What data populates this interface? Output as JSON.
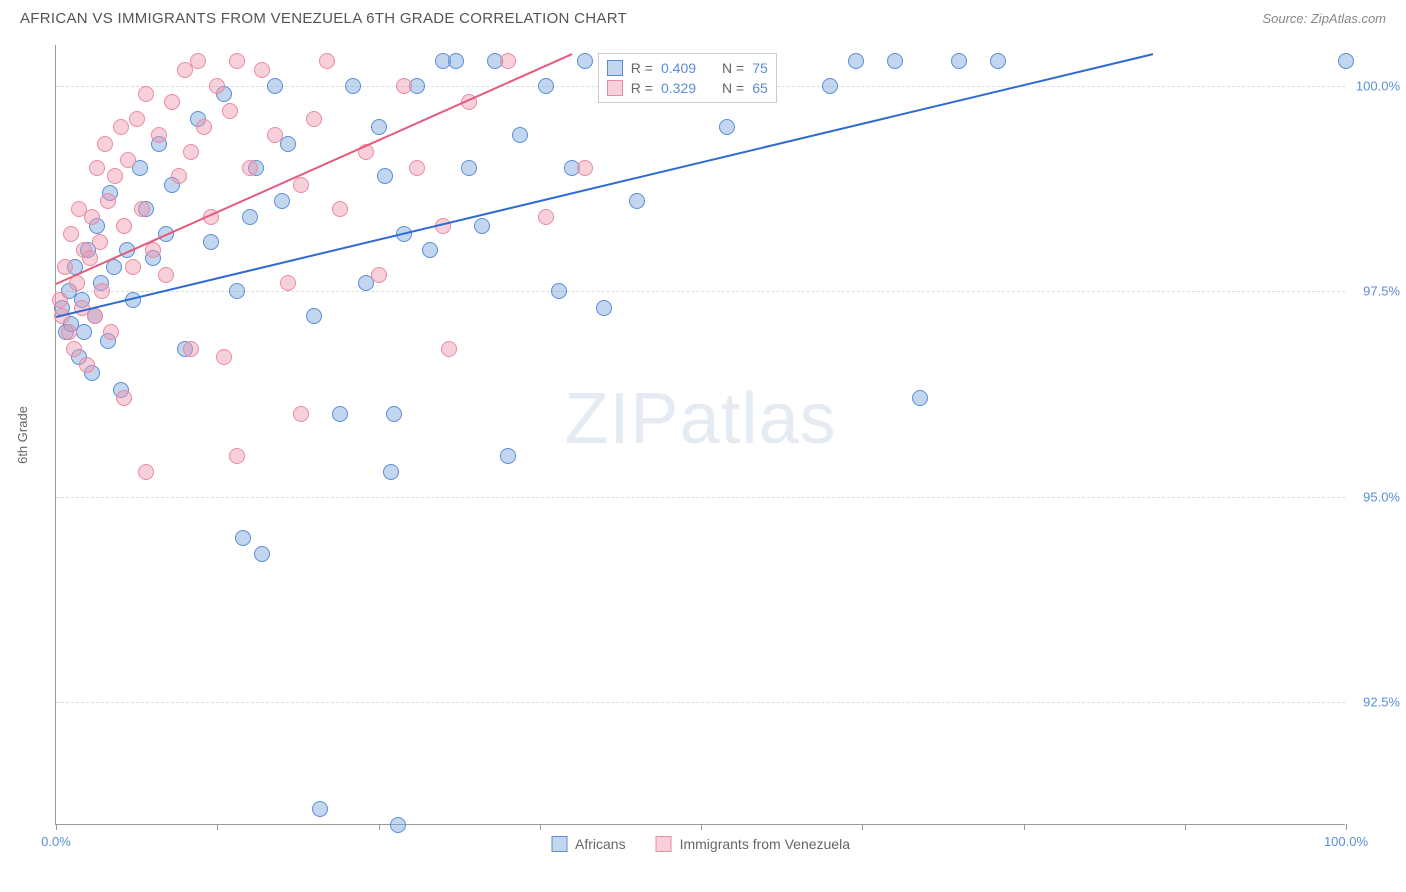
{
  "header": {
    "title": "AFRICAN VS IMMIGRANTS FROM VENEZUELA 6TH GRADE CORRELATION CHART",
    "source": "Source: ZipAtlas.com"
  },
  "chart": {
    "type": "scatter",
    "ylabel": "6th Grade",
    "watermark_a": "ZIP",
    "watermark_b": "atlas",
    "background_color": "#ffffff",
    "grid_color": "#dddddd",
    "axis_color": "#999999",
    "xlim": [
      0,
      100
    ],
    "ylim": [
      91.0,
      100.5
    ],
    "xticks": [
      0,
      12.5,
      25,
      37.5,
      50,
      62.5,
      75,
      87.5,
      100
    ],
    "xtick_labels": {
      "0": "0.0%",
      "100": "100.0%"
    },
    "yticks": [
      92.5,
      95.0,
      97.5,
      100.0
    ],
    "ytick_labels": [
      "92.5%",
      "95.0%",
      "97.5%",
      "100.0%"
    ],
    "point_radius": 8,
    "series": [
      {
        "name": "Africans",
        "color_fill": "rgba(120,165,220,0.45)",
        "color_stroke": "#5b8dd6",
        "r_label": "R =",
        "r_value": "0.409",
        "n_label": "N =",
        "n_value": "75",
        "trend": {
          "x1": 0,
          "y1": 97.2,
          "x2": 85,
          "y2": 100.4,
          "color": "#2e6bd1"
        },
        "points": [
          [
            0.5,
            97.3
          ],
          [
            0.8,
            97.0
          ],
          [
            1.0,
            97.5
          ],
          [
            1.2,
            97.1
          ],
          [
            1.5,
            97.8
          ],
          [
            1.8,
            96.7
          ],
          [
            2.0,
            97.4
          ],
          [
            2.2,
            97.0
          ],
          [
            2.5,
            98.0
          ],
          [
            2.8,
            96.5
          ],
          [
            3.0,
            97.2
          ],
          [
            3.2,
            98.3
          ],
          [
            3.5,
            97.6
          ],
          [
            4.0,
            96.9
          ],
          [
            4.2,
            98.7
          ],
          [
            4.5,
            97.8
          ],
          [
            5.0,
            96.3
          ],
          [
            5.5,
            98.0
          ],
          [
            6.0,
            97.4
          ],
          [
            6.5,
            99.0
          ],
          [
            7.0,
            98.5
          ],
          [
            7.5,
            97.9
          ],
          [
            8.0,
            99.3
          ],
          [
            8.5,
            98.2
          ],
          [
            9.0,
            98.8
          ],
          [
            10.0,
            96.8
          ],
          [
            11.0,
            99.6
          ],
          [
            12.0,
            98.1
          ],
          [
            13.0,
            99.9
          ],
          [
            14.0,
            97.5
          ],
          [
            14.5,
            94.5
          ],
          [
            15.0,
            98.4
          ],
          [
            15.5,
            99.0
          ],
          [
            16.0,
            94.3
          ],
          [
            17.0,
            100.0
          ],
          [
            17.5,
            98.6
          ],
          [
            18.0,
            99.3
          ],
          [
            20.0,
            97.2
          ],
          [
            20.5,
            91.2
          ],
          [
            22.0,
            96.0
          ],
          [
            23.0,
            100.0
          ],
          [
            24.0,
            97.6
          ],
          [
            25.0,
            99.5
          ],
          [
            25.5,
            98.9
          ],
          [
            26.0,
            95.3
          ],
          [
            26.2,
            96.0
          ],
          [
            26.5,
            91.0
          ],
          [
            27.0,
            98.2
          ],
          [
            28.0,
            100.0
          ],
          [
            29.0,
            98.0
          ],
          [
            30.0,
            100.3
          ],
          [
            31.0,
            100.3
          ],
          [
            32.0,
            99.0
          ],
          [
            33.0,
            98.3
          ],
          [
            34.0,
            100.3
          ],
          [
            35.0,
            95.5
          ],
          [
            36.0,
            99.4
          ],
          [
            38.0,
            100.0
          ],
          [
            39.0,
            97.5
          ],
          [
            40.0,
            99.0
          ],
          [
            41.0,
            100.3
          ],
          [
            42.5,
            97.3
          ],
          [
            44.0,
            100.0
          ],
          [
            45.0,
            98.6
          ],
          [
            46.0,
            100.0
          ],
          [
            50.0,
            100.3
          ],
          [
            52.0,
            99.5
          ],
          [
            55.0,
            100.3
          ],
          [
            60.0,
            100.0
          ],
          [
            62.0,
            100.3
          ],
          [
            65.0,
            100.3
          ],
          [
            67.0,
            96.2
          ],
          [
            70.0,
            100.3
          ],
          [
            73.0,
            100.3
          ],
          [
            100.0,
            100.3
          ]
        ]
      },
      {
        "name": "Immigrants from Venezuela",
        "color_fill": "rgba(240,150,170,0.45)",
        "color_stroke": "#e88ba3",
        "r_label": "R =",
        "r_value": "0.329",
        "n_label": "N =",
        "n_value": "65",
        "trend": {
          "x1": 0,
          "y1": 97.6,
          "x2": 40,
          "y2": 100.4,
          "color": "#e65a7c"
        },
        "points": [
          [
            0.3,
            97.4
          ],
          [
            0.5,
            97.2
          ],
          [
            0.7,
            97.8
          ],
          [
            1.0,
            97.0
          ],
          [
            1.2,
            98.2
          ],
          [
            1.4,
            96.8
          ],
          [
            1.6,
            97.6
          ],
          [
            1.8,
            98.5
          ],
          [
            2.0,
            97.3
          ],
          [
            2.2,
            98.0
          ],
          [
            2.4,
            96.6
          ],
          [
            2.6,
            97.9
          ],
          [
            2.8,
            98.4
          ],
          [
            3.0,
            97.2
          ],
          [
            3.2,
            99.0
          ],
          [
            3.4,
            98.1
          ],
          [
            3.6,
            97.5
          ],
          [
            3.8,
            99.3
          ],
          [
            4.0,
            98.6
          ],
          [
            4.3,
            97.0
          ],
          [
            4.6,
            98.9
          ],
          [
            5.0,
            99.5
          ],
          [
            5.3,
            98.3
          ],
          [
            5.3,
            96.2
          ],
          [
            5.6,
            99.1
          ],
          [
            6.0,
            97.8
          ],
          [
            6.3,
            99.6
          ],
          [
            6.7,
            98.5
          ],
          [
            7.0,
            99.9
          ],
          [
            7.0,
            95.3
          ],
          [
            7.5,
            98.0
          ],
          [
            8.0,
            99.4
          ],
          [
            8.5,
            97.7
          ],
          [
            9.0,
            99.8
          ],
          [
            9.5,
            98.9
          ],
          [
            10.0,
            100.2
          ],
          [
            10.5,
            99.2
          ],
          [
            10.5,
            96.8
          ],
          [
            11.0,
            100.3
          ],
          [
            11.5,
            99.5
          ],
          [
            12.0,
            98.4
          ],
          [
            12.5,
            100.0
          ],
          [
            13.0,
            96.7
          ],
          [
            13.5,
            99.7
          ],
          [
            14.0,
            100.3
          ],
          [
            14.0,
            95.5
          ],
          [
            15.0,
            99.0
          ],
          [
            16.0,
            100.2
          ],
          [
            17.0,
            99.4
          ],
          [
            18.0,
            97.6
          ],
          [
            19.0,
            98.8
          ],
          [
            19.0,
            96.0
          ],
          [
            20.0,
            99.6
          ],
          [
            21.0,
            100.3
          ],
          [
            22.0,
            98.5
          ],
          [
            24.0,
            99.2
          ],
          [
            25.0,
            97.7
          ],
          [
            27.0,
            100.0
          ],
          [
            28.0,
            99.0
          ],
          [
            30.0,
            98.3
          ],
          [
            30.5,
            96.8
          ],
          [
            32.0,
            99.8
          ],
          [
            35.0,
            100.3
          ],
          [
            38.0,
            98.4
          ],
          [
            41.0,
            99.0
          ]
        ]
      }
    ],
    "stats_box": {
      "left_pct": 42,
      "top_y": 100.4
    },
    "legend": {
      "items": [
        {
          "label": "Africans",
          "fill": "rgba(120,165,220,0.45)",
          "stroke": "#5b8dd6"
        },
        {
          "label": "Immigrants from Venezuela",
          "fill": "rgba(240,150,170,0.45)",
          "stroke": "#e88ba3"
        }
      ]
    }
  }
}
